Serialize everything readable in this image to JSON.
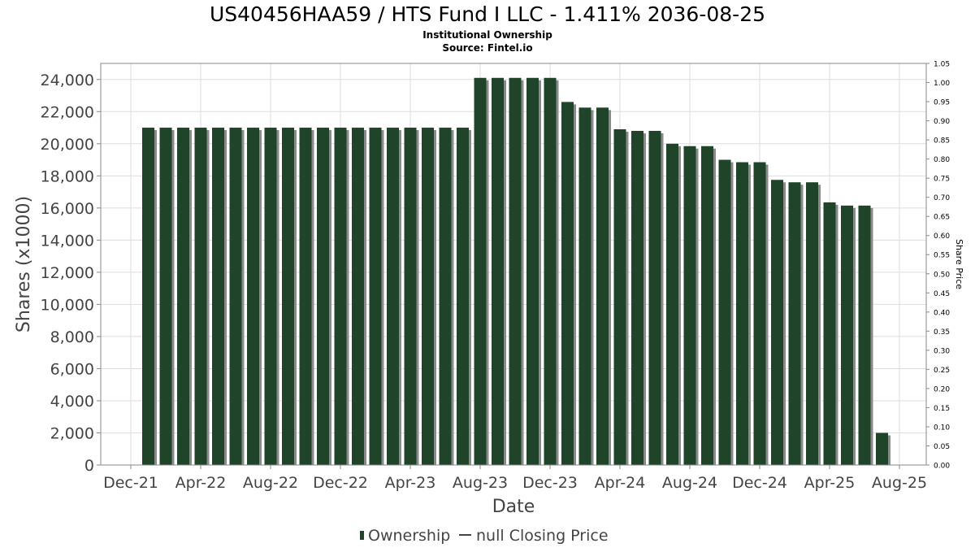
{
  "chart_data": {
    "type": "bar",
    "title": "US40456HAA59 / HTS Fund I LLC - 1.411% 2036-08-25",
    "subtitle_lines": [
      "Institutional Ownership",
      "Source: Fintel.io"
    ],
    "xlabel": "Date",
    "ylabel": "Shares (x1000)",
    "y2label": "Share Price",
    "ylim": [
      0,
      25000
    ],
    "y2lim": [
      0,
      1.05
    ],
    "yticks": [
      "0",
      "2,000",
      "4,000",
      "6,000",
      "8,000",
      "10,000",
      "12,000",
      "14,000",
      "16,000",
      "18,000",
      "20,000",
      "22,000",
      "24,000"
    ],
    "y2ticks": [
      "0.00",
      "0.05",
      "0.10",
      "0.15",
      "0.20",
      "0.25",
      "0.30",
      "0.35",
      "0.40",
      "0.45",
      "0.50",
      "0.55",
      "0.60",
      "0.65",
      "0.70",
      "0.75",
      "0.80",
      "0.85",
      "0.90",
      "0.95",
      "1.00",
      "1.05"
    ],
    "xticks": [
      "Dec-21",
      "Apr-22",
      "Aug-22",
      "Dec-22",
      "Apr-23",
      "Aug-23",
      "Dec-23",
      "Apr-24",
      "Aug-24",
      "Dec-24",
      "Apr-25",
      "Aug-25"
    ],
    "grid": true,
    "legend_position": "bottom",
    "series": [
      {
        "name": "Ownership",
        "color": "#1f4429",
        "values": [
          21000,
          21000,
          21000,
          21000,
          21000,
          21000,
          21000,
          21000,
          21000,
          21000,
          21000,
          21000,
          21000,
          21000,
          21000,
          21000,
          21000,
          21000,
          21000,
          24100,
          24100,
          24100,
          24100,
          24100,
          22600,
          22250,
          22250,
          20900,
          20800,
          20800,
          20000,
          19850,
          19850,
          19000,
          18850,
          18850,
          17750,
          17600,
          17600,
          16350,
          16150,
          16150,
          2000
        ]
      }
    ],
    "legend": [
      {
        "label": "Ownership",
        "marker": "bar"
      },
      {
        "label": "null Closing Price",
        "marker": "line"
      }
    ]
  }
}
